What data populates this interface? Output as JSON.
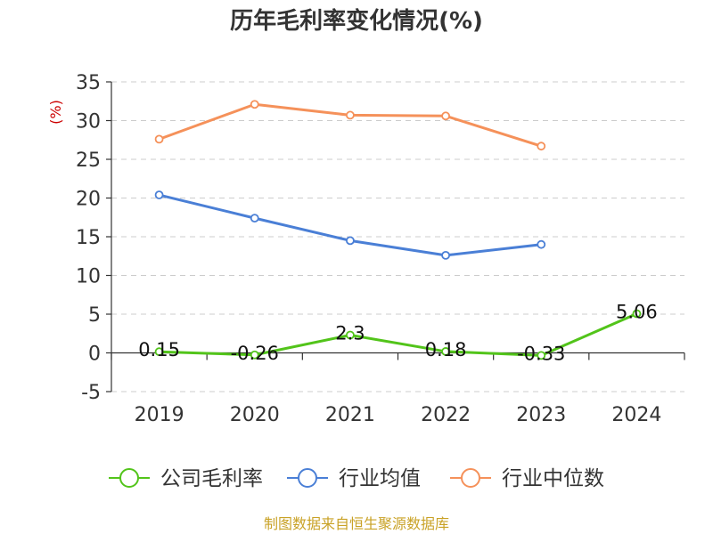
{
  "chart_data": {
    "type": "line",
    "title": "历年毛利率变化情况(%)",
    "ylabel": "(%)",
    "categories": [
      "2019",
      "2020",
      "2021",
      "2022",
      "2023",
      "2024"
    ],
    "ylim": [
      -5,
      35
    ],
    "yticks": [
      "35",
      "30",
      "25",
      "20",
      "15",
      "10",
      "5",
      "0",
      "-5"
    ],
    "grid": true,
    "legend_position": "bottom",
    "series": [
      {
        "name": "公司毛利率",
        "color": "#52c41a",
        "values": [
          0.15,
          -0.26,
          2.3,
          0.18,
          -0.33,
          5.06
        ],
        "labels": [
          "0.15",
          "-0.26",
          "2.3",
          "0.18",
          "-0.33",
          "5.06"
        ]
      },
      {
        "name": "行业均值",
        "color": "#4a7fd6",
        "values": [
          20.4,
          17.4,
          14.5,
          12.6,
          14.0,
          null
        ]
      },
      {
        "name": "行业中位数",
        "color": "#f5915a",
        "values": [
          27.6,
          32.1,
          30.7,
          30.6,
          26.7,
          null
        ]
      }
    ]
  },
  "source": "制图数据来自恒生聚源数据库"
}
